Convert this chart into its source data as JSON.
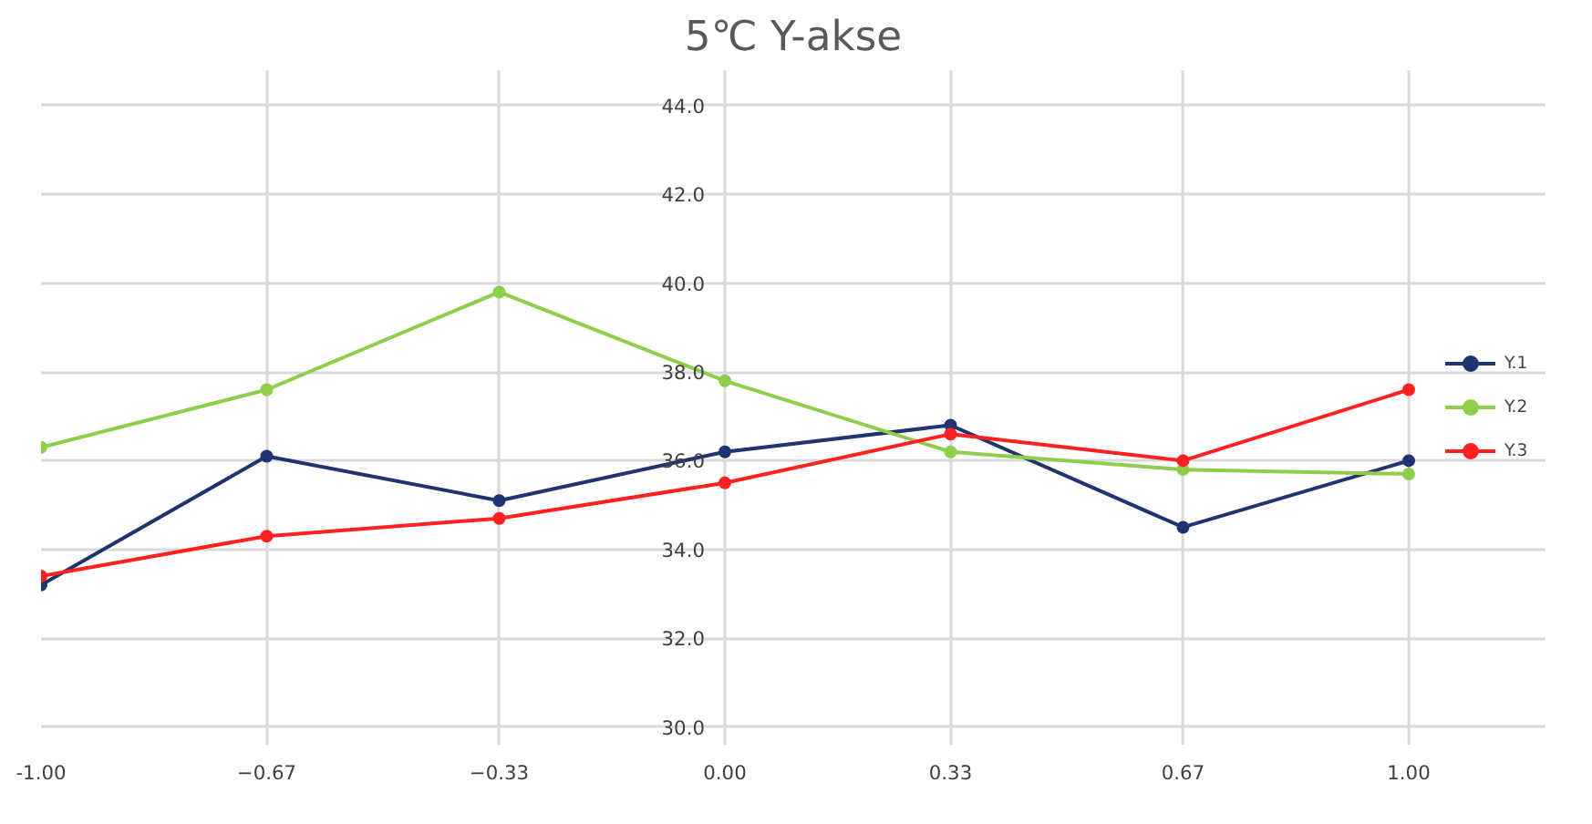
{
  "chart_data": {
    "type": "line",
    "title": "5℃ Y-akse",
    "x": [
      -1,
      -0.67,
      -0.33,
      0,
      0.33,
      0.67,
      1
    ],
    "series": [
      {
        "name": "Y.1",
        "color": "#1f3470",
        "values": [
          33.2,
          36.1,
          35.1,
          36.2,
          36.8,
          34.5,
          36.0
        ]
      },
      {
        "name": "Y.2",
        "color": "#8fce4a",
        "values": [
          36.3,
          37.6,
          39.8,
          37.8,
          36.2,
          35.8,
          35.7
        ]
      },
      {
        "name": "Y.3",
        "color": "#ff2020",
        "values": [
          33.4,
          34.3,
          34.7,
          35.5,
          36.6,
          36.0,
          37.6
        ]
      }
    ],
    "xlim": [
      -1,
      1
    ],
    "xticks": [
      {
        "value": -1,
        "label": "-1.00"
      },
      -0.67,
      -0.33,
      {
        "value": 0,
        "label": "0.00"
      },
      0.33,
      0.67,
      {
        "value": 1,
        "label": "1.00"
      }
    ],
    "ylim": [
      29.6,
      44.8
    ],
    "yticks": [
      {
        "value": 30,
        "label": "30.0"
      },
      {
        "value": 32,
        "label": "32.0"
      },
      {
        "value": 34,
        "label": "34.0"
      },
      {
        "value": 36,
        "label": "36.0"
      },
      {
        "value": 38,
        "label": "38.0"
      },
      {
        "value": 40,
        "label": "40.0"
      },
      {
        "value": 42,
        "label": "42.0"
      },
      {
        "value": 44,
        "label": "44.0"
      }
    ],
    "grid": true,
    "legend": "right",
    "marker": "circle",
    "line_style": "solid"
  }
}
